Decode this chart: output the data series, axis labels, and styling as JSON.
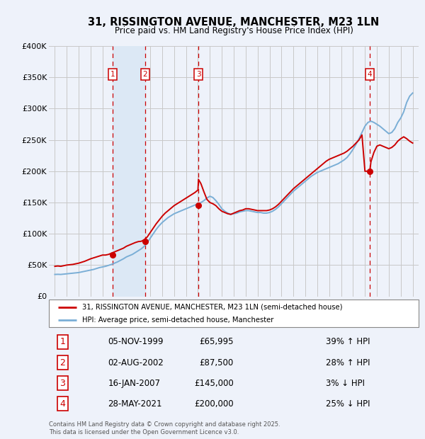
{
  "title": "31, RISSINGTON AVENUE, MANCHESTER, M23 1LN",
  "subtitle": "Price paid vs. HM Land Registry's House Price Index (HPI)",
  "legend_red": "31, RISSINGTON AVENUE, MANCHESTER, M23 1LN (semi-detached house)",
  "legend_blue": "HPI: Average price, semi-detached house, Manchester",
  "copyright": "Contains HM Land Registry data © Crown copyright and database right 2025.\nThis data is licensed under the Open Government Licence v3.0.",
  "transactions": [
    {
      "num": 1,
      "date": "05-NOV-1999",
      "price": "65,995",
      "pct": "39% ↑ HPI",
      "year": 1999.85,
      "dot_y": 65995
    },
    {
      "num": 2,
      "date": "02-AUG-2002",
      "price": "87,500",
      "pct": "28% ↑ HPI",
      "year": 2002.58,
      "dot_y": 87500
    },
    {
      "num": 3,
      "date": "16-JAN-2007",
      "price": "145,000",
      "pct": "3% ↓ HPI",
      "year": 2007.04,
      "dot_y": 145000
    },
    {
      "num": 4,
      "date": "28-MAY-2021",
      "price": "200,000",
      "pct": "25% ↓ HPI",
      "year": 2021.41,
      "dot_y": 200000
    }
  ],
  "bg_color": "#eef2fa",
  "plot_bg": "#eef2fa",
  "shade_color": "#dce8f5",
  "grid_color": "#c8c8c8",
  "red_color": "#cc0000",
  "blue_color": "#7aaed6",
  "dashed_color": "#cc0000",
  "xlim": [
    1994.5,
    2025.5
  ],
  "ylim": [
    0,
    400000
  ],
  "yticks": [
    0,
    50000,
    100000,
    150000,
    200000,
    250000,
    300000,
    350000,
    400000
  ],
  "ytick_labels": [
    "£0",
    "£50K",
    "£100K",
    "£150K",
    "£200K",
    "£250K",
    "£300K",
    "£350K",
    "£400K"
  ],
  "xticks": [
    1995,
    1996,
    1997,
    1998,
    1999,
    2000,
    2001,
    2002,
    2003,
    2004,
    2005,
    2006,
    2007,
    2008,
    2009,
    2010,
    2011,
    2012,
    2013,
    2014,
    2015,
    2016,
    2017,
    2018,
    2019,
    2020,
    2021,
    2022,
    2023,
    2024,
    2025
  ]
}
